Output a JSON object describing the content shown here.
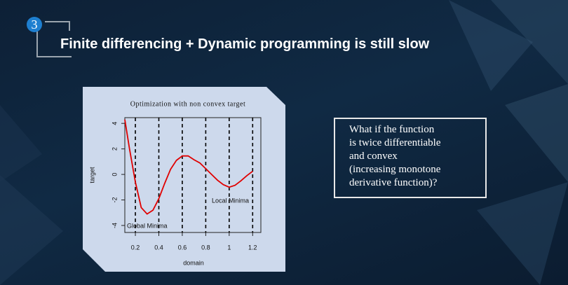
{
  "slide_number": "3",
  "title": "Finite differencing + Dynamic programming is still slow",
  "callout": [
    "What if the function",
    "is twice differentiable",
    "and convex",
    "(increasing monotone",
    "derivative function)?"
  ],
  "chart_data": {
    "type": "line",
    "title": "Optimization with non convex target",
    "x_label": "domain",
    "y_label": "target",
    "x": [
      0.11,
      0.15,
      0.2,
      0.25,
      0.3,
      0.35,
      0.4,
      0.45,
      0.5,
      0.55,
      0.6,
      0.65,
      0.7,
      0.75,
      0.8,
      0.85,
      0.9,
      0.95,
      1.0,
      1.05,
      1.1,
      1.15,
      1.2
    ],
    "values": [
      4.3,
      2.0,
      -0.6,
      -2.6,
      -3.1,
      -2.8,
      -1.9,
      -0.7,
      0.4,
      1.1,
      1.45,
      1.45,
      1.15,
      0.9,
      0.45,
      0.0,
      -0.45,
      -0.8,
      -1.0,
      -0.85,
      -0.5,
      -0.1,
      0.25
    ],
    "color": "#e00000",
    "vlines": [
      0.2,
      0.4,
      0.6,
      0.8,
      1.0,
      1.2
    ],
    "annotations": [
      "Local Minima",
      "Global Minima"
    ],
    "xlim": [
      0.11,
      1.27
    ],
    "ylim": [
      -4.55,
      4.45
    ],
    "xticks": [
      0.2,
      0.4,
      0.6,
      0.8,
      1.0,
      1.2
    ],
    "yticks": [
      -4,
      -2,
      0,
      2,
      4
    ]
  }
}
